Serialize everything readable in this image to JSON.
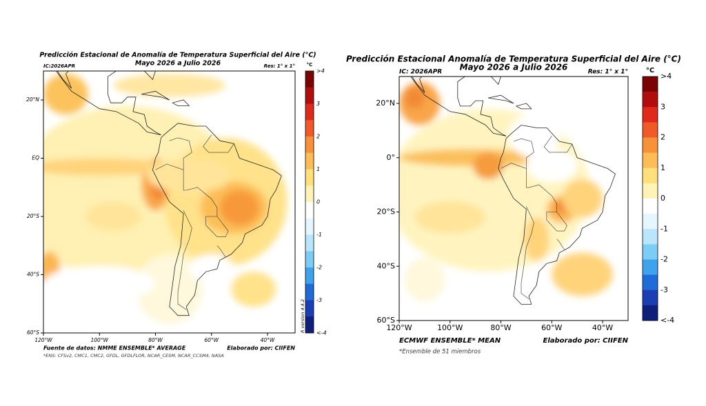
{
  "panels": [
    {
      "title": "Predicción Estacional de Anomalía de Temperatura Superficial del Aire (°C)",
      "subtitle": "Mayo 2026 a Julio 2026",
      "ic": "IC:2026APR",
      "res": "Res: 1° x 1°",
      "unit": "°C",
      "lat_labels": [
        "20°N",
        "EQ",
        "20°S",
        "40°S",
        "60°S"
      ],
      "lon_labels": [
        "120°W",
        "100°W",
        "80°W",
        "60°W",
        "40°W"
      ],
      "colorbar_labels": [
        ">4",
        "3",
        "2",
        "1",
        "0",
        "-1",
        "-2",
        "-3",
        "<-4"
      ],
      "version": "R version 4.4.2",
      "footer_left": "Fuente de datos: NMME ENSEMBLE* AVERAGE",
      "footer_right": "Elaborado por: CIIFEN",
      "note": "*ENS: CFSv2, CMC1, CMC2, GFDL, GFDLFLOR, NCAR_CESM, NCAR_CCSM4, NASA"
    },
    {
      "title": "Predicción Estacional Anomalía de Temperatura Superficial del Aire (°C)",
      "subtitle": "Mayo 2026 a Julio 2026",
      "ic": "IC: 2026APR",
      "res": "Res: 1° x 1°",
      "unit": "°C",
      "lat_labels": [
        "20°N",
        "0°",
        "20°S",
        "40°S",
        "60°S"
      ],
      "lon_labels": [
        "120°W",
        "100°W",
        "80°W",
        "60°W",
        "40°W"
      ],
      "colorbar_labels": [
        ">4",
        "3",
        "2",
        "1",
        "0",
        "-1",
        "-2",
        "-3",
        "<-4"
      ],
      "footer_left": "ECMWF ENSEMBLE* MEAN",
      "footer_right": "Elaborado por: CIIFEN",
      "note": "*Ensemble de 51 miembros"
    }
  ]
}
